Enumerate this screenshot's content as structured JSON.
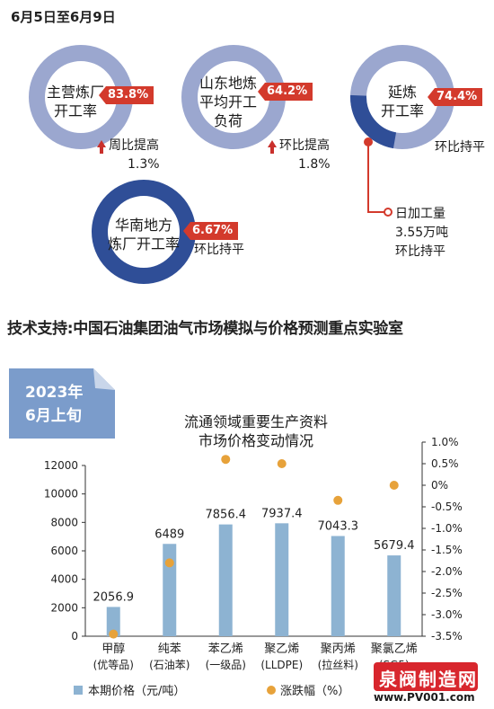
{
  "header": {
    "title": "6月5日至6月9日"
  },
  "colors": {
    "ring": "#9ba7cf",
    "ring_dark": "#2f4e97",
    "flag": "#d33a2c",
    "bar": "#8db3d2",
    "dot": "#e7a23a"
  },
  "indicators": [
    {
      "label_lines": [
        "主营炼厂",
        "开工率"
      ],
      "value": "83.8%",
      "change_lines": [
        "周比提高",
        "1.3%"
      ],
      "trend": "up"
    },
    {
      "label_lines": [
        "山东地炼",
        "平均开工",
        "负荷"
      ],
      "value": "64.2%",
      "change_lines": [
        "环比提高",
        "1.8%"
      ],
      "trend": "up"
    },
    {
      "label_lines": [
        "延炼",
        "开工率"
      ],
      "value": "74.4%",
      "change_lines": [
        "环比持平"
      ],
      "trend": "flat",
      "extra_lines": [
        "日加工量",
        "3.55万吨",
        "环比持平"
      ]
    },
    {
      "label_lines": [
        "华南地方",
        "炼厂开工率"
      ],
      "value": "6.67%",
      "change_lines": [
        "环比持平"
      ],
      "trend": "flat"
    }
  ],
  "support_text": "技术支持:中国石油集团油气市场模拟与价格预测重点实验室",
  "corner_tag": {
    "line1": "2023年",
    "line2": "6月上旬"
  },
  "chart_title_lines": [
    "流通领域重要生产资料",
    "市场价格变动情况"
  ],
  "chart_data": {
    "type": "bar",
    "title": "流通领域重要生产资料市场价格变动情况",
    "categories": [
      {
        "name": "甲醇",
        "sub": "(优等品)"
      },
      {
        "name": "纯苯",
        "sub": "(石油苯)"
      },
      {
        "name": "苯乙烯",
        "sub": "(一级品)"
      },
      {
        "name": "聚乙烯",
        "sub": "(LLDPE)"
      },
      {
        "name": "聚丙烯",
        "sub": "(拉丝料)"
      },
      {
        "name": "聚氯乙烯",
        "sub": "(SG5)"
      }
    ],
    "series": [
      {
        "name": "本期价格（元/吨）",
        "type": "bar",
        "axis": "left",
        "values": [
          2056.9,
          6489,
          7856.4,
          7937.4,
          7043.3,
          5679.4
        ],
        "labels": [
          "2056.9",
          "6489",
          "7856.4",
          "7937.4",
          "7043.3",
          "5679.4"
        ]
      },
      {
        "name": "涨跌幅（%）",
        "type": "scatter",
        "axis": "right",
        "values": [
          -3.45,
          -1.8,
          0.6,
          0.5,
          -0.35,
          0.0
        ]
      }
    ],
    "y_left": {
      "range": [
        0,
        12000
      ],
      "ticks": [
        "0",
        "2000",
        "4000",
        "6000",
        "8000",
        "10000",
        "12000"
      ]
    },
    "y_right": {
      "range": [
        -3.5,
        1.0
      ],
      "ticks": [
        "1.0%",
        "0.5%",
        "0%",
        "-0.5%",
        "-1.0%",
        "-1.5%",
        "-2.0%",
        "-2.5%",
        "-3.0%",
        "-3.5%"
      ]
    },
    "legend": {
      "position": "bottom",
      "items": [
        "本期价格（元/吨）",
        "涨跌幅（%）"
      ]
    }
  },
  "watermark": {
    "name": "泉阀制造网",
    "url": "www.PV001.com"
  }
}
